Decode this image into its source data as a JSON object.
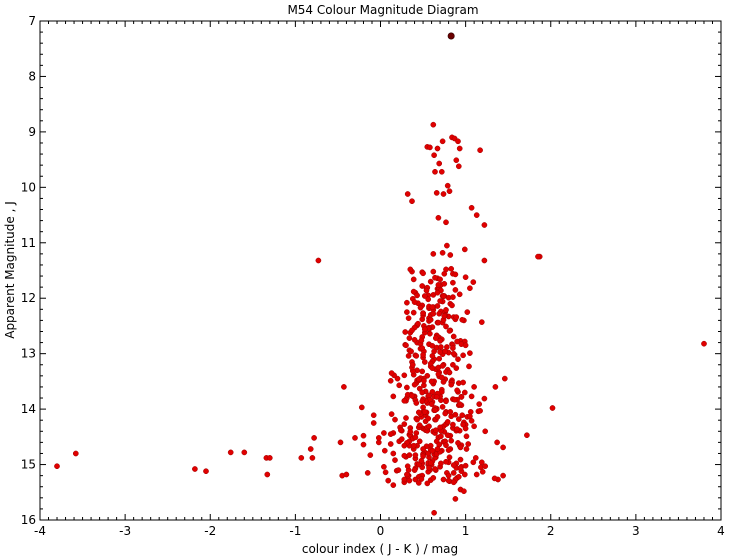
{
  "chart_data": {
    "type": "scatter",
    "title": "M54 Colour Magnitude Diagram",
    "xlabel": "colour index ( J - K )  / mag",
    "ylabel": "Apparent Magnitude , J",
    "xlim": [
      -4,
      4
    ],
    "ylim": [
      16,
      7
    ],
    "y_inverted": true,
    "grid": false,
    "legend": "none",
    "x_ticks": [
      "-4",
      "-3",
      "-2",
      "-1",
      "0",
      "1",
      "2",
      "3",
      "4"
    ],
    "y_ticks": [
      "7",
      "8",
      "9",
      "10",
      "11",
      "12",
      "13",
      "14",
      "15",
      "16"
    ],
    "colors": {
      "points": "#e00000",
      "points_edge": "#a00000",
      "highlight": "#6a0000",
      "axis": "#000000"
    },
    "highlight_point": [
      0.83,
      7.27
    ],
    "outliers": [
      [
        -3.8,
        15.03
      ],
      [
        -3.58,
        14.8
      ],
      [
        -2.18,
        15.08
      ],
      [
        -2.05,
        15.12
      ],
      [
        -1.76,
        14.78
      ],
      [
        -1.6,
        14.78
      ],
      [
        -1.34,
        14.88
      ],
      [
        -1.3,
        14.88
      ],
      [
        -1.33,
        15.18
      ],
      [
        -0.93,
        14.88
      ],
      [
        -0.8,
        14.88
      ],
      [
        -0.82,
        14.72
      ],
      [
        -0.78,
        14.52
      ],
      [
        -0.73,
        11.32
      ],
      [
        -0.45,
        15.2
      ],
      [
        -0.4,
        15.18
      ],
      [
        -0.47,
        14.6
      ],
      [
        -0.43,
        13.6
      ],
      [
        -0.3,
        14.52
      ],
      [
        -0.2,
        14.48
      ],
      [
        -0.22,
        13.97
      ],
      [
        0.32,
        10.12
      ],
      [
        0.37,
        10.25
      ],
      [
        0.62,
        8.87
      ],
      [
        0.67,
        9.3
      ],
      [
        0.55,
        9.27
      ],
      [
        0.58,
        9.28
      ],
      [
        0.63,
        9.42
      ],
      [
        0.69,
        9.57
      ],
      [
        0.73,
        9.17
      ],
      [
        0.84,
        9.1
      ],
      [
        0.87,
        9.12
      ],
      [
        0.91,
        9.17
      ],
      [
        0.93,
        9.3
      ],
      [
        0.89,
        9.51
      ],
      [
        0.92,
        9.62
      ],
      [
        1.17,
        9.33
      ],
      [
        0.64,
        9.72
      ],
      [
        0.72,
        9.72
      ],
      [
        0.79,
        9.97
      ],
      [
        0.81,
        10.07
      ],
      [
        0.66,
        10.1
      ],
      [
        0.74,
        10.12
      ],
      [
        1.07,
        10.37
      ],
      [
        1.13,
        10.5
      ],
      [
        1.22,
        10.68
      ],
      [
        0.68,
        10.55
      ],
      [
        0.77,
        10.63
      ],
      [
        0.62,
        11.2
      ],
      [
        0.73,
        11.18
      ],
      [
        0.78,
        11.05
      ],
      [
        0.82,
        11.22
      ],
      [
        0.99,
        11.12
      ],
      [
        1.22,
        11.32
      ],
      [
        1.87,
        11.25
      ],
      [
        1.85,
        11.25
      ],
      [
        0.37,
        11.52
      ],
      [
        0.62,
        11.52
      ],
      [
        1.0,
        11.62
      ],
      [
        1.05,
        11.82
      ],
      [
        3.8,
        12.82
      ],
      [
        1.46,
        13.45
      ],
      [
        1.35,
        13.6
      ],
      [
        1.72,
        14.47
      ],
      [
        2.02,
        13.98
      ],
      [
        1.37,
        14.6
      ],
      [
        1.38,
        15.27
      ],
      [
        0.63,
        15.87
      ],
      [
        0.88,
        15.62
      ],
      [
        0.94,
        15.45
      ],
      [
        0.98,
        15.48
      ],
      [
        1.13,
        15.18
      ],
      [
        1.18,
        15.05
      ],
      [
        1.2,
        15.13
      ],
      [
        0.15,
        15.37
      ],
      [
        -0.15,
        15.15
      ],
      [
        -0.12,
        14.83
      ],
      [
        0.09,
        15.29
      ],
      [
        1.09,
        14.96
      ],
      [
        0.86,
        15.15
      ]
    ],
    "clump": {
      "center_x": 0.62,
      "center_y": 13.85,
      "count": 480,
      "x_spread": 0.28,
      "y_min": 11.45,
      "y_max": 15.35
    },
    "x": [],
    "y": []
  }
}
